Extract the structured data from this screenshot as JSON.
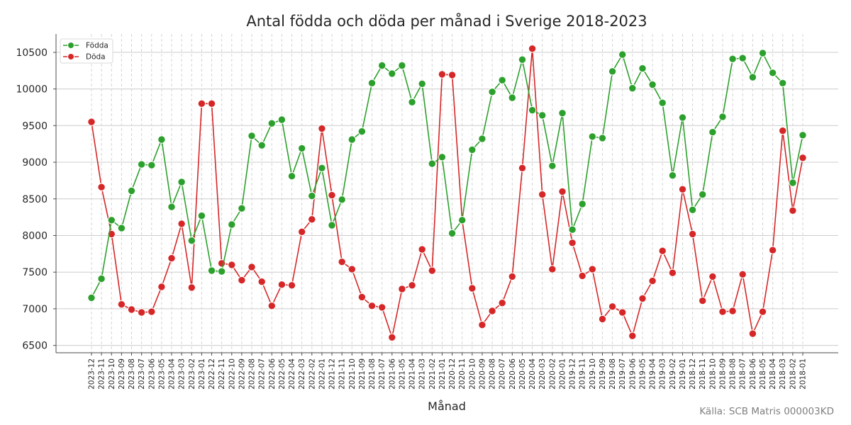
{
  "chart_data": {
    "type": "line",
    "title": "Antal födda och döda per månad i Sverige 2018-2023",
    "xlabel": "Månad",
    "ylabel": "",
    "source": "Källa: SCB Matris 000003KD",
    "ylim": [
      6400,
      10750
    ],
    "yticks": [
      6500,
      7000,
      7500,
      8000,
      8500,
      9000,
      9500,
      10000,
      10500
    ],
    "grid": true,
    "legend_position": "top-left",
    "categories": [
      "2023-12",
      "2023-11",
      "2023-10",
      "2023-09",
      "2023-08",
      "2023-07",
      "2023-06",
      "2023-05",
      "2023-04",
      "2023-03",
      "2023-02",
      "2023-01",
      "2022-12",
      "2022-11",
      "2022-10",
      "2022-09",
      "2022-08",
      "2022-07",
      "2022-06",
      "2022-05",
      "2022-04",
      "2022-03",
      "2022-02",
      "2022-01",
      "2021-12",
      "2021-11",
      "2021-10",
      "2021-09",
      "2021-08",
      "2021-07",
      "2021-06",
      "2021-05",
      "2021-04",
      "2021-03",
      "2021-02",
      "2021-01",
      "2020-12",
      "2020-11",
      "2020-10",
      "2020-09",
      "2020-08",
      "2020-07",
      "2020-06",
      "2020-05",
      "2020-04",
      "2020-03",
      "2020-02",
      "2020-01",
      "2019-12",
      "2019-11",
      "2019-10",
      "2019-09",
      "2019-08",
      "2019-07",
      "2019-06",
      "2019-05",
      "2019-04",
      "2019-03",
      "2019-02",
      "2019-01",
      "2018-12",
      "2018-11",
      "2018-10",
      "2018-09",
      "2018-08",
      "2018-07",
      "2018-06",
      "2018-05",
      "2018-04",
      "2018-03",
      "2018-02",
      "2018-01"
    ],
    "series": [
      {
        "name": "Födda",
        "color": "#2ca02c",
        "values": [
          7150,
          7410,
          8210,
          8100,
          8610,
          8970,
          8960,
          9310,
          8390,
          8730,
          7930,
          8270,
          7520,
          7510,
          8150,
          8370,
          9360,
          9230,
          9530,
          9580,
          8810,
          9190,
          8540,
          8920,
          8140,
          8490,
          9310,
          9420,
          10080,
          10320,
          10210,
          10320,
          9820,
          10070,
          8980,
          9070,
          8030,
          8210,
          9170,
          9320,
          9960,
          10120,
          9880,
          10400,
          9710,
          9640,
          8950,
          9670,
          8080,
          8430,
          9350,
          9330,
          10240,
          10470,
          10010,
          10280,
          10060,
          9810,
          8820,
          9610,
          8350,
          8560,
          9410,
          9620,
          10410,
          10420,
          10160,
          10490,
          10220,
          10080,
          8720,
          9370
        ]
      },
      {
        "name": "Döda",
        "color": "#d62728",
        "values": [
          9550,
          8660,
          8020,
          7060,
          6990,
          6950,
          6960,
          7300,
          7690,
          8160,
          7290,
          9800,
          9800,
          7620,
          7600,
          7390,
          7570,
          7370,
          7040,
          7330,
          7320,
          8050,
          8220,
          9460,
          8550,
          7640,
          7540,
          7160,
          7040,
          7020,
          6610,
          7270,
          7320,
          7810,
          7520,
          10200,
          10190,
          8210,
          7280,
          6780,
          6970,
          7080,
          7440,
          8920,
          10550,
          8560,
          7540,
          8600,
          7900,
          7450,
          7540,
          6860,
          7030,
          6950,
          6630,
          7140,
          7380,
          7790,
          7490,
          8630,
          8020,
          7110,
          7440,
          6960,
          6970,
          7470,
          6660,
          6960,
          7800,
          9430,
          8340,
          9060
        ]
      }
    ]
  }
}
